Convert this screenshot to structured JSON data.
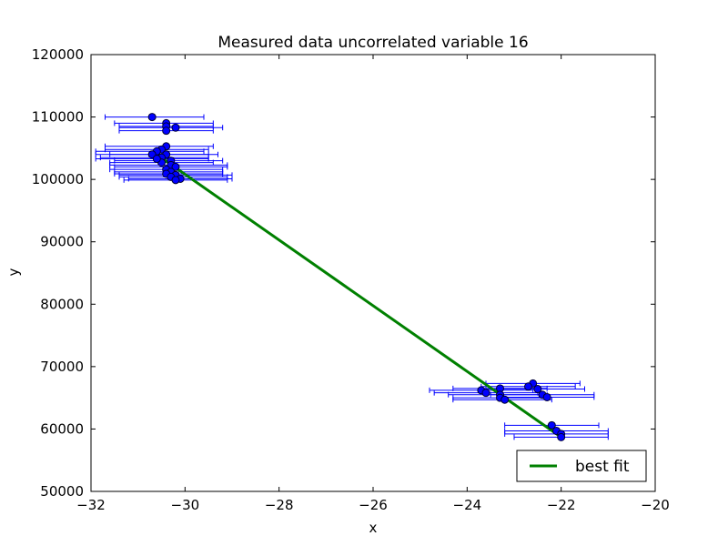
{
  "chart_data": {
    "type": "scatter",
    "title": "Measured data uncorrelated variable 16",
    "xlabel": "x",
    "ylabel": "y",
    "xlim": [
      -32,
      -20
    ],
    "ylim": [
      50000,
      120000
    ],
    "xticks": [
      -32,
      -30,
      -28,
      -26,
      -24,
      -22,
      -20
    ],
    "yticks": [
      50000,
      60000,
      70000,
      80000,
      90000,
      100000,
      110000,
      120000
    ],
    "xtick_labels": [
      "−32",
      "−30",
      "−28",
      "−26",
      "−24",
      "−22",
      "−20"
    ],
    "ytick_labels": [
      "50000",
      "60000",
      "70000",
      "80000",
      "90000",
      "100000",
      "110000",
      "120000"
    ],
    "grid": false,
    "legend_position": "bottom-right",
    "colors": {
      "points": "#0000ff",
      "errorbars": "#0000ff",
      "fit": "#008000"
    },
    "series": [
      {
        "kind": "errorbar-scatter",
        "points": [
          {
            "x": -30.7,
            "y": 110000,
            "xerr_lo": 1.0,
            "xerr_hi": 1.1
          },
          {
            "x": -30.4,
            "y": 109000,
            "xerr_lo": 1.1,
            "xerr_hi": 1.0
          },
          {
            "x": -30.4,
            "y": 108500,
            "xerr_lo": 1.0,
            "xerr_hi": 1.0
          },
          {
            "x": -30.2,
            "y": 108300,
            "xerr_lo": 1.2,
            "xerr_hi": 1.0
          },
          {
            "x": -30.4,
            "y": 107800,
            "xerr_lo": 1.0,
            "xerr_hi": 1.0
          },
          {
            "x": -30.4,
            "y": 105300,
            "xerr_lo": 1.3,
            "xerr_hi": 1.0
          },
          {
            "x": -30.5,
            "y": 104800,
            "xerr_lo": 1.2,
            "xerr_hi": 1.0
          },
          {
            "x": -30.6,
            "y": 104500,
            "xerr_lo": 1.3,
            "xerr_hi": 1.0
          },
          {
            "x": -30.4,
            "y": 104000,
            "xerr_lo": 1.2,
            "xerr_hi": 1.1
          },
          {
            "x": -30.5,
            "y": 103500,
            "xerr_lo": 1.3,
            "xerr_hi": 1.0
          },
          {
            "x": -30.3,
            "y": 103000,
            "xerr_lo": 1.2,
            "xerr_hi": 1.1
          },
          {
            "x": -30.5,
            "y": 102700,
            "xerr_lo": 1.1,
            "xerr_hi": 1.1
          },
          {
            "x": -30.3,
            "y": 102300,
            "xerr_lo": 1.3,
            "xerr_hi": 1.2
          },
          {
            "x": -30.2,
            "y": 102000,
            "xerr_lo": 1.3,
            "xerr_hi": 1.1
          },
          {
            "x": -30.4,
            "y": 101600,
            "xerr_lo": 1.2,
            "xerr_hi": 1.2
          },
          {
            "x": -30.3,
            "y": 101200,
            "xerr_lo": 1.2,
            "xerr_hi": 1.1
          },
          {
            "x": -30.4,
            "y": 100900,
            "xerr_lo": 1.1,
            "xerr_hi": 1.2
          },
          {
            "x": -30.2,
            "y": 100700,
            "xerr_lo": 1.2,
            "xerr_hi": 1.2
          },
          {
            "x": -30.3,
            "y": 100400,
            "xerr_lo": 1.1,
            "xerr_hi": 1.2
          },
          {
            "x": -30.1,
            "y": 100100,
            "xerr_lo": 1.1,
            "xerr_hi": 1.1
          },
          {
            "x": -30.2,
            "y": 99900,
            "xerr_lo": 1.1,
            "xerr_hi": 1.1
          },
          {
            "x": -30.7,
            "y": 104000,
            "xerr_lo": 1.2,
            "xerr_hi": 1.2
          },
          {
            "x": -30.6,
            "y": 103300,
            "xerr_lo": 1.3,
            "xerr_hi": 1.1
          },
          {
            "x": -22.6,
            "y": 67300,
            "xerr_lo": 1.0,
            "xerr_hi": 1.0
          },
          {
            "x": -22.7,
            "y": 66800,
            "xerr_lo": 1.0,
            "xerr_hi": 1.0
          },
          {
            "x": -22.5,
            "y": 66400,
            "xerr_lo": 1.1,
            "xerr_hi": 1.0
          },
          {
            "x": -23.3,
            "y": 66500,
            "xerr_lo": 1.0,
            "xerr_hi": 1.0
          },
          {
            "x": -23.7,
            "y": 66200,
            "xerr_lo": 1.1,
            "xerr_hi": 1.1
          },
          {
            "x": -23.6,
            "y": 65800,
            "xerr_lo": 1.1,
            "xerr_hi": 1.1
          },
          {
            "x": -23.3,
            "y": 65500,
            "xerr_lo": 1.1,
            "xerr_hi": 1.0
          },
          {
            "x": -22.4,
            "y": 65500,
            "xerr_lo": 1.1,
            "xerr_hi": 1.1
          },
          {
            "x": -23.3,
            "y": 65000,
            "xerr_lo": 1.0,
            "xerr_hi": 1.0
          },
          {
            "x": -22.3,
            "y": 65100,
            "xerr_lo": 1.0,
            "xerr_hi": 1.0
          },
          {
            "x": -23.2,
            "y": 64700,
            "xerr_lo": 1.1,
            "xerr_hi": 1.0
          },
          {
            "x": -22.2,
            "y": 60600,
            "xerr_lo": 1.0,
            "xerr_hi": 1.0
          },
          {
            "x": -22.1,
            "y": 59700,
            "xerr_lo": 1.1,
            "xerr_hi": 1.1
          },
          {
            "x": -22.0,
            "y": 59200,
            "xerr_lo": 1.2,
            "xerr_hi": 1.0
          },
          {
            "x": -22.0,
            "y": 58700,
            "xerr_lo": 1.0,
            "xerr_hi": 1.0
          }
        ]
      },
      {
        "name": "best fit",
        "kind": "line",
        "x": [
          -30.7,
          -22.0
        ],
        "y": [
          104500,
          58700
        ]
      }
    ],
    "legend": [
      "best fit"
    ]
  }
}
